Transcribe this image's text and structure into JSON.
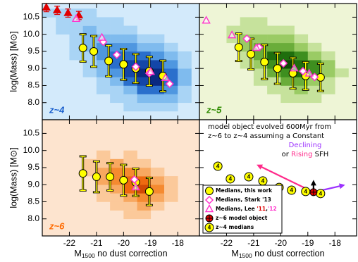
{
  "chart_data": [
    {
      "type": "heatmap",
      "panel_label": "z~4",
      "label_color": "#1a5fcc",
      "background": "#d3eafb",
      "xlim": [
        -23,
        -17.2
      ],
      "ylim": [
        7.5,
        10.9
      ],
      "xticks": [
        -22,
        -21,
        -20,
        -19,
        -18
      ],
      "xtick_labels": false,
      "yticks": [
        {
          "value": 8,
          "label": "8.0"
        },
        8.5,
        {
          "value": 9,
          "label": "9.0"
        },
        9.5,
        {
          "value": 10,
          "label": "10.0"
        },
        10.5
      ],
      "ytick_labels": true,
      "ylabel": "log(Mass) [M⊙]",
      "heatmap": {
        "x_edges": [
          -23,
          -22.5,
          -22,
          -21.5,
          -21,
          -20.5,
          -20,
          -19.5,
          -19,
          -18.5,
          -18,
          -17.5
        ],
        "y_edges": [
          7.75,
          8,
          8.25,
          8.5,
          8.75,
          9,
          9.25,
          9.5,
          9.75,
          10,
          10.25,
          10.5,
          10.75
        ],
        "colors": [
          "#a9d4f5",
          "#7fbbee",
          "#4f97e0",
          "#2a6fcc",
          "#1446a8",
          "#0a2a80"
        ],
        "counts": [
          [
            0,
            0,
            0,
            0,
            0,
            0,
            1,
            1,
            1,
            1,
            0
          ],
          [
            0,
            0,
            0,
            0,
            0,
            1,
            1,
            2,
            2,
            2,
            1
          ],
          [
            0,
            0,
            0,
            0,
            1,
            1,
            2,
            4,
            4,
            3,
            1
          ],
          [
            0,
            0,
            0,
            0,
            1,
            2,
            4,
            5,
            6,
            4,
            2
          ],
          [
            0,
            0,
            0,
            1,
            2,
            3,
            5,
            6,
            6,
            4,
            2
          ],
          [
            0,
            0,
            0,
            1,
            2,
            4,
            5,
            5,
            5,
            3,
            1
          ],
          [
            0,
            0,
            1,
            1,
            3,
            4,
            4,
            4,
            3,
            2,
            1
          ],
          [
            0,
            0,
            1,
            2,
            3,
            3,
            3,
            2,
            2,
            1,
            0
          ],
          [
            0,
            0,
            1,
            2,
            2,
            2,
            2,
            1,
            1,
            0,
            0
          ],
          [
            0,
            1,
            1,
            2,
            1,
            1,
            1,
            0,
            0,
            0,
            0
          ],
          [
            0,
            1,
            1,
            1,
            1,
            1,
            0,
            0,
            0,
            0,
            0
          ],
          [
            1,
            1,
            1,
            1,
            0,
            0,
            0,
            0,
            0,
            0,
            0
          ]
        ]
      },
      "series": [
        {
          "marker": "triangle-filled",
          "color": "#e00000",
          "x": [
            -22.85,
            -22.45,
            -22.05,
            -21.65
          ],
          "values": [
            10.78,
            10.7,
            10.62,
            10.55
          ],
          "errors": [
            0.12,
            0.12,
            0.12,
            0.12
          ]
        },
        {
          "marker": "circle",
          "color": "#ffff00",
          "x": [
            -21.5,
            -21.1,
            -20.55,
            -20.0,
            -19.55,
            -19.05,
            -18.55
          ],
          "values": [
            9.6,
            9.5,
            9.22,
            9.12,
            9.0,
            8.92,
            8.78
          ],
          "errors": [
            0.4,
            0.45,
            0.45,
            0.45,
            0.42,
            0.42,
            0.45
          ]
        },
        {
          "marker": "diamond",
          "color": "#ff33cc",
          "x": [
            -20.75,
            -20.25,
            -19.55,
            -19.05,
            -18.3
          ],
          "values": [
            9.78,
            9.4,
            9.05,
            8.86,
            8.55
          ]
        },
        {
          "marker": "triangle",
          "color": "#ff33cc",
          "x": [
            -21.75,
            -20.8,
            -19.0,
            -18.45
          ],
          "values": [
            10.45,
            9.9,
            8.9,
            8.72
          ]
        }
      ]
    },
    {
      "type": "heatmap",
      "panel_label": "z~5",
      "label_color": "#2e8b00",
      "background": "#eef5d6",
      "xlim": [
        -23,
        -17.2
      ],
      "ylim": [
        7.5,
        10.9
      ],
      "xticks": [
        -22,
        -21,
        -20,
        -19,
        -18
      ],
      "xtick_labels": false,
      "yticks": [
        8,
        8.5,
        9,
        9.5,
        10,
        10.5
      ],
      "ytick_labels": false,
      "heatmap": {
        "x_edges": [
          -23,
          -22.5,
          -22,
          -21.5,
          -21,
          -20.5,
          -20,
          -19.5,
          -19,
          -18.5,
          -18,
          -17.5
        ],
        "y_edges": [
          7.75,
          8,
          8.25,
          8.5,
          8.75,
          9,
          9.25,
          9.5,
          9.75,
          10,
          10.25,
          10.5,
          10.75
        ],
        "colors": [
          "#c6e29c",
          "#9acb64",
          "#6aad3a",
          "#3e8f1f",
          "#1f6e0d",
          "#0d4a05"
        ],
        "counts": [
          [
            0,
            0,
            0,
            0,
            0,
            0,
            0,
            0,
            0,
            0,
            0
          ],
          [
            0,
            0,
            0,
            0,
            0,
            0,
            1,
            1,
            1,
            0,
            0
          ],
          [
            0,
            0,
            0,
            0,
            0,
            1,
            1,
            2,
            1,
            1,
            0
          ],
          [
            0,
            0,
            0,
            0,
            1,
            1,
            3,
            3,
            2,
            1,
            0
          ],
          [
            0,
            0,
            0,
            0,
            1,
            3,
            4,
            5,
            4,
            2,
            1
          ],
          [
            0,
            0,
            0,
            1,
            2,
            4,
            6,
            5,
            4,
            2,
            0
          ],
          [
            0,
            0,
            0,
            1,
            3,
            5,
            5,
            4,
            2,
            1,
            0
          ],
          [
            0,
            0,
            0,
            2,
            3,
            3,
            3,
            2,
            1,
            0,
            0
          ],
          [
            0,
            0,
            1,
            2,
            2,
            2,
            2,
            1,
            0,
            0,
            0
          ],
          [
            0,
            0,
            1,
            1,
            1,
            1,
            1,
            0,
            0,
            0,
            0
          ],
          [
            0,
            0,
            0,
            1,
            1,
            0,
            0,
            0,
            0,
            0,
            0
          ],
          [
            0,
            0,
            0,
            0,
            0,
            0,
            0,
            0,
            0,
            0,
            0
          ]
        ]
      },
      "series": [
        {
          "marker": "circle",
          "color": "#ffff00",
          "x": [
            -21.55,
            -21.1,
            -20.6,
            -20.12,
            -19.55,
            -19.08,
            -18.53
          ],
          "values": [
            9.62,
            9.42,
            9.19,
            9.0,
            8.86,
            8.78,
            8.74
          ],
          "errors": [
            0.4,
            0.45,
            0.5,
            0.45,
            0.45,
            0.4,
            0.4
          ]
        },
        {
          "marker": "diamond",
          "color": "#ff33cc",
          "x": [
            -21.25,
            -20.8,
            -19.9,
            -19.18,
            -18.75
          ],
          "values": [
            9.87,
            9.62,
            9.15,
            8.92,
            8.75
          ]
        },
        {
          "marker": "triangle",
          "color": "#ff33cc",
          "x": [
            -22.75,
            -21.8,
            -20.9,
            -19.5,
            -18.95
          ],
          "values": [
            10.4,
            9.97,
            9.6,
            9.0,
            8.85
          ]
        }
      ]
    },
    {
      "type": "heatmap",
      "panel_label": "z~6",
      "label_color": "#ff6a00",
      "background": "#fde4cf",
      "xlim": [
        -23,
        -17.2
      ],
      "ylim": [
        7.5,
        10.9
      ],
      "xticks": [
        -22,
        -21,
        -20,
        -19,
        -18
      ],
      "xtick_labels": true,
      "yticks": [
        {
          "value": 8,
          "label": "8.0"
        },
        8.5,
        {
          "value": 9,
          "label": "9.0"
        },
        9.5,
        {
          "value": 10,
          "label": "10.0"
        },
        10.5
      ],
      "ytick_labels": true,
      "ylabel": "log(Mass) [M⊙]",
      "xlabel": [
        "M",
        "1500",
        " no dust correction"
      ],
      "heatmap": {
        "x_edges": [
          -23,
          -22.5,
          -22,
          -21.5,
          -21,
          -20.5,
          -20,
          -19.5,
          -19,
          -18.5,
          -18,
          -17.5
        ],
        "y_edges": [
          7.75,
          8,
          8.25,
          8.5,
          8.75,
          9,
          9.25,
          9.5,
          9.75,
          10,
          10.25,
          10.5,
          10.75
        ],
        "colors": [
          "#fbc99a",
          "#f8a860",
          "#f58a30",
          "#ee6a10",
          "#d04a05",
          "#a02a00"
        ],
        "counts": [
          [
            0,
            0,
            0,
            0,
            0,
            0,
            0,
            0,
            0,
            0,
            0
          ],
          [
            0,
            0,
            0,
            0,
            0,
            0,
            1,
            1,
            0,
            0,
            0
          ],
          [
            0,
            0,
            0,
            0,
            0,
            1,
            1,
            2,
            1,
            0,
            0
          ],
          [
            0,
            0,
            0,
            0,
            1,
            1,
            2,
            3,
            2,
            1,
            0
          ],
          [
            0,
            0,
            0,
            0,
            1,
            2,
            4,
            5,
            3,
            1,
            0
          ],
          [
            0,
            0,
            0,
            0,
            2,
            3,
            4,
            4,
            2,
            1,
            0
          ],
          [
            0,
            0,
            0,
            1,
            2,
            3,
            3,
            2,
            1,
            0,
            0
          ],
          [
            0,
            0,
            0,
            1,
            1,
            2,
            1,
            1,
            0,
            0,
            0
          ],
          [
            0,
            0,
            0,
            0,
            1,
            0,
            1,
            0,
            0,
            0,
            0
          ],
          [
            0,
            0,
            0,
            0,
            0,
            0,
            0,
            0,
            0,
            0,
            0
          ],
          [
            0,
            0,
            0,
            0,
            0,
            0,
            0,
            0,
            0,
            0,
            0
          ],
          [
            0,
            0,
            0,
            0,
            0,
            0,
            0,
            0,
            0,
            0,
            0
          ]
        ]
      },
      "series": [
        {
          "marker": "circle",
          "color": "#ffff00",
          "x": [
            -21.5,
            -21.0,
            -20.5,
            -20.0,
            -19.55,
            -19.05
          ],
          "values": [
            9.33,
            9.23,
            9.23,
            9.13,
            9.07,
            8.8
          ],
          "errors": [
            0.5,
            0.45,
            0.4,
            0.45,
            0.4,
            0.4
          ]
        },
        {
          "marker": "diamond",
          "color": "#ff33cc",
          "x": [
            -19.6
          ],
          "values": [
            9.15
          ]
        },
        {
          "marker": "triangle",
          "color": "#ff33cc",
          "x": [
            -19.55
          ],
          "values": [
            8.92
          ]
        }
      ]
    },
    {
      "type": "scatter",
      "background": "#ffffff",
      "xlim": [
        -23,
        -17.2
      ],
      "ylim": [
        7.5,
        10.9
      ],
      "xticks": [
        -22,
        -21,
        -20,
        -19,
        -18
      ],
      "xtick_labels": true,
      "yticks": [
        8,
        8.5,
        9,
        9.5,
        10,
        10.5
      ],
      "ytick_labels": false,
      "xlabel": [
        "M",
        "1500",
        " no dust correction"
      ],
      "series": [
        {
          "marker": "circle-labeled",
          "color": "#ffff00",
          "point_label": "4",
          "x": [
            -22.32,
            -21.86,
            -21.18,
            -20.66,
            -20.06,
            -19.6,
            -19.08,
            -18.53
          ],
          "values": [
            9.54,
            9.17,
            9.23,
            9.11,
            8.92,
            8.84,
            8.8,
            8.74
          ]
        }
      ],
      "arrows": [
        {
          "color": "#000000",
          "x": [
            -18.79,
            -18.79
          ],
          "values": [
            8.78,
            9.08
          ]
        },
        {
          "color": "#ff2a8a",
          "x": [
            -18.79,
            -20.82
          ],
          "values": [
            8.78,
            9.56
          ]
        },
        {
          "color": "#9b30ff",
          "x": [
            -18.79,
            -17.7
          ],
          "values": [
            8.78,
            8.98
          ]
        }
      ],
      "model_object": {
        "marker": "cross-circle",
        "color": "#e00000",
        "x": -18.79,
        "value": 8.78
      },
      "note": {
        "lines": [
          "model object evolved 600Myr from",
          "z~6 to z~4 assuming a Constant"
        ],
        "declining": "Declining",
        "declining_color": "#9b30ff",
        "or": "or ",
        "rising": "Rising",
        "rising_color": "#ff2a8a",
        "sfh": " SFH"
      },
      "legend": [
        {
          "label": [
            "Medians, this work"
          ],
          "marker": "circle",
          "color": "#ffff00"
        },
        {
          "label": [
            "Medians, Stark '13"
          ],
          "marker": "diamond",
          "color": "#ff33cc"
        },
        {
          "label": [
            "Medians, Lee ",
            "'11",
            ",",
            "'12"
          ],
          "label_colors": [
            "#000000",
            "#e00000",
            "#000000",
            "#ff33cc"
          ],
          "marker": "triangle",
          "color": "#ff33cc"
        },
        {
          "label": [
            "z~6 model object"
          ],
          "marker": "cross-circle",
          "color": "#e00000"
        },
        {
          "label": [
            "z~4 medians"
          ],
          "marker": "circle-labeled",
          "color": "#ffff00"
        }
      ]
    }
  ]
}
